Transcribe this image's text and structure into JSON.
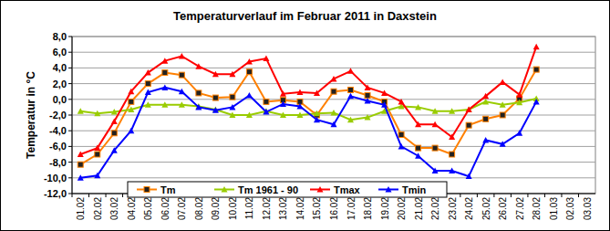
{
  "chart_data": {
    "type": "line",
    "title": "Temperaturverlauf im Februar 2011 in Daxstein",
    "y_label": "Temperatur in °C",
    "categories": [
      "01.02",
      "02.02",
      "03.02",
      "04.02",
      "05.02",
      "06.02",
      "07.02",
      "08.02",
      "09.02",
      "10.02",
      "11.02",
      "12.02",
      "13.02",
      "14.02",
      "15.02",
      "16.02",
      "17.02",
      "18.02",
      "19.02",
      "20.02",
      "21.02",
      "22.02",
      "23.02",
      "24.02",
      "25.02",
      "26.02",
      "27.02",
      "28.02",
      "01.03",
      "02.03",
      "03.03"
    ],
    "series": [
      {
        "name": "Tm",
        "color": "#ff8000",
        "marker": "square",
        "values": [
          -8.3,
          -7.0,
          -4.3,
          -0.3,
          2.0,
          3.4,
          3.1,
          0.8,
          0.2,
          0.3,
          3.5,
          -0.3,
          -0.1,
          -0.3,
          -2.0,
          1.0,
          1.2,
          0.5,
          -0.3,
          -4.5,
          -6.2,
          -6.2,
          -7.0,
          -3.3,
          -2.5,
          -2.0,
          0.1,
          3.8,
          null,
          null,
          null
        ]
      },
      {
        "name": "Tm 1961 - 90",
        "color": "#99cc00",
        "marker": "triangle",
        "values": [
          -1.5,
          -1.8,
          -1.6,
          -1.3,
          -0.7,
          -0.7,
          -0.7,
          -0.9,
          -1.3,
          -2.0,
          -2.0,
          -1.5,
          -2.0,
          -2.0,
          -1.8,
          -1.7,
          -2.6,
          -2.3,
          -1.5,
          -0.9,
          -1.0,
          -1.5,
          -1.5,
          -1.3,
          -0.3,
          -0.7,
          -0.4,
          0.1,
          null,
          null,
          null
        ]
      },
      {
        "name": "Tmax",
        "color": "#ff0000",
        "marker": "triangle",
        "values": [
          -7.0,
          -6.2,
          -2.8,
          1.0,
          3.4,
          4.9,
          5.5,
          4.2,
          3.2,
          3.2,
          4.8,
          5.2,
          0.7,
          0.9,
          0.8,
          2.6,
          3.6,
          1.5,
          0.8,
          -0.3,
          -3.2,
          -3.2,
          -4.8,
          -1.3,
          0.4,
          2.2,
          0.6,
          6.7,
          null,
          null,
          null
        ]
      },
      {
        "name": "Tmin",
        "color": "#0000ff",
        "marker": "triangle",
        "values": [
          -10.0,
          -9.7,
          -6.5,
          -4.0,
          0.9,
          1.5,
          1.0,
          -1.0,
          -1.4,
          -1.0,
          0.5,
          -1.6,
          -0.6,
          -0.9,
          -2.6,
          -3.2,
          0.4,
          -0.2,
          -0.7,
          -6.0,
          -7.2,
          -9.1,
          -9.1,
          -9.8,
          -5.2,
          -5.7,
          -4.3,
          -0.3,
          null,
          null,
          null
        ]
      }
    ],
    "ylim": [
      -12,
      8
    ],
    "yticks": [
      {
        "value": -12,
        "label": "-12,0"
      },
      {
        "value": -10,
        "label": "-10,0"
      },
      {
        "value": -8,
        "label": "-8,0"
      },
      {
        "value": -6,
        "label": "-6,0"
      },
      {
        "value": -4,
        "label": "-4,0"
      },
      {
        "value": -2,
        "label": "-2,0"
      },
      {
        "value": 0,
        "label": "0,0"
      },
      {
        "value": 2,
        "label": "2,0"
      },
      {
        "value": 4,
        "label": "4,0"
      },
      {
        "value": 6,
        "label": "6,0"
      },
      {
        "value": 8,
        "label": "8,0"
      }
    ],
    "grid": true,
    "legend": "bottom"
  }
}
